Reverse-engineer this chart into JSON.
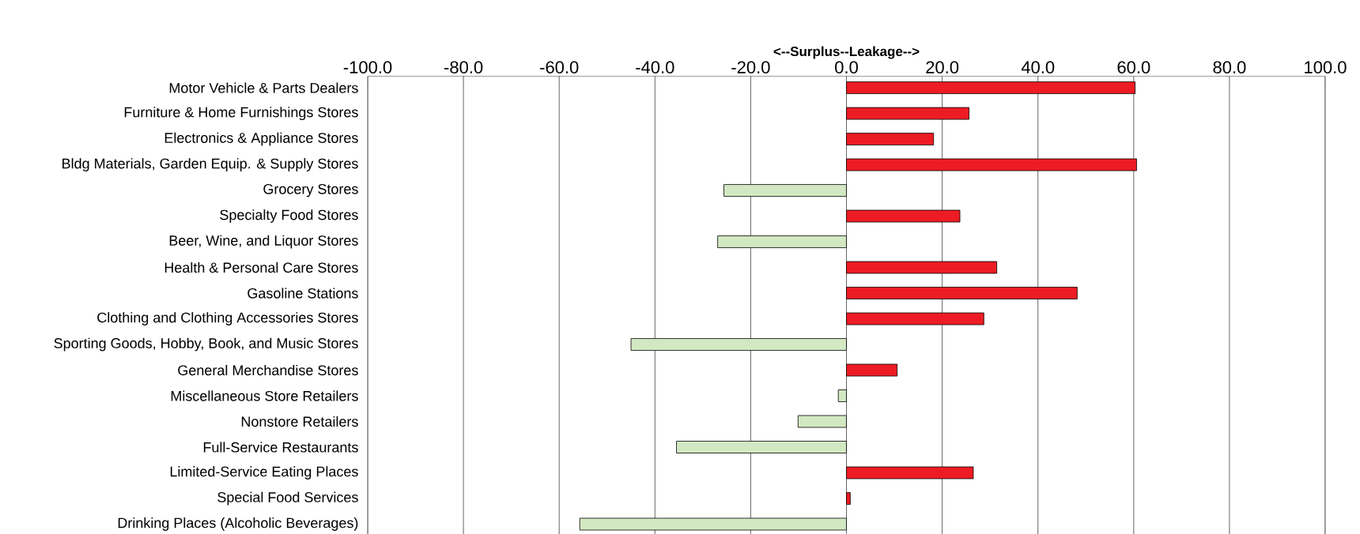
{
  "chart_data": {
    "type": "bar",
    "orientation": "horizontal",
    "xlabel": "<--Surplus--Leakage-->",
    "categories": [
      "Motor Vehicle & Parts Dealers",
      "Furniture & Home Furnishings Stores",
      "Electronics & Appliance Stores",
      "Bldg Materials, Garden Equip. & Supply Stores",
      "Grocery Stores",
      "Specialty Food Stores",
      "Beer, Wine, and Liquor Stores",
      "Health & Personal Care Stores",
      "Gasoline Stations",
      "Clothing and Clothing Accessories Stores",
      "Sporting Goods, Hobby, Book, and Music Stores",
      "General Merchandise Stores",
      "Miscellaneous Store Retailers",
      "Nonstore Retailers",
      "Full-Service Restaurants",
      "Limited-Service Eating Places",
      "Special Food Services",
      "Drinking Places (Alcoholic Beverages)"
    ],
    "values": [
      60.3,
      25.6,
      18.2,
      60.6,
      -25.6,
      23.7,
      -26.9,
      31.4,
      48.2,
      28.7,
      -45.0,
      10.6,
      -1.7,
      -10.1,
      -35.5,
      26.5,
      0.8,
      -55.7
    ],
    "colors": [
      "#ed1c24",
      "#ed1c24",
      "#ed1c24",
      "#ed1c24",
      "#d2e8c2",
      "#ed1c24",
      "#d2e8c2",
      "#ed1c24",
      "#ed1c24",
      "#ed1c24",
      "#d2e8c2",
      "#ed1c24",
      "#d2e8c2",
      "#d2e8c2",
      "#d2e8c2",
      "#ed1c24",
      "#ed1c24",
      "#d2e8c2"
    ],
    "xlim": [
      -100,
      100
    ],
    "xticks": [
      {
        "value": -100,
        "label": "-100.0"
      },
      {
        "value": -80,
        "label": "-80.0"
      },
      {
        "value": -60,
        "label": "-60.0"
      },
      {
        "value": -40,
        "label": "-40.0"
      },
      {
        "value": -20,
        "label": "-20.0"
      },
      {
        "value": 0,
        "label": "0.0"
      },
      {
        "value": 20,
        "label": "20.0"
      },
      {
        "value": 40,
        "label": "40.0"
      },
      {
        "value": 60,
        "label": "60.0"
      },
      {
        "value": 80,
        "label": "80.0"
      },
      {
        "value": 100,
        "label": "100.0"
      }
    ],
    "grid": "x"
  }
}
